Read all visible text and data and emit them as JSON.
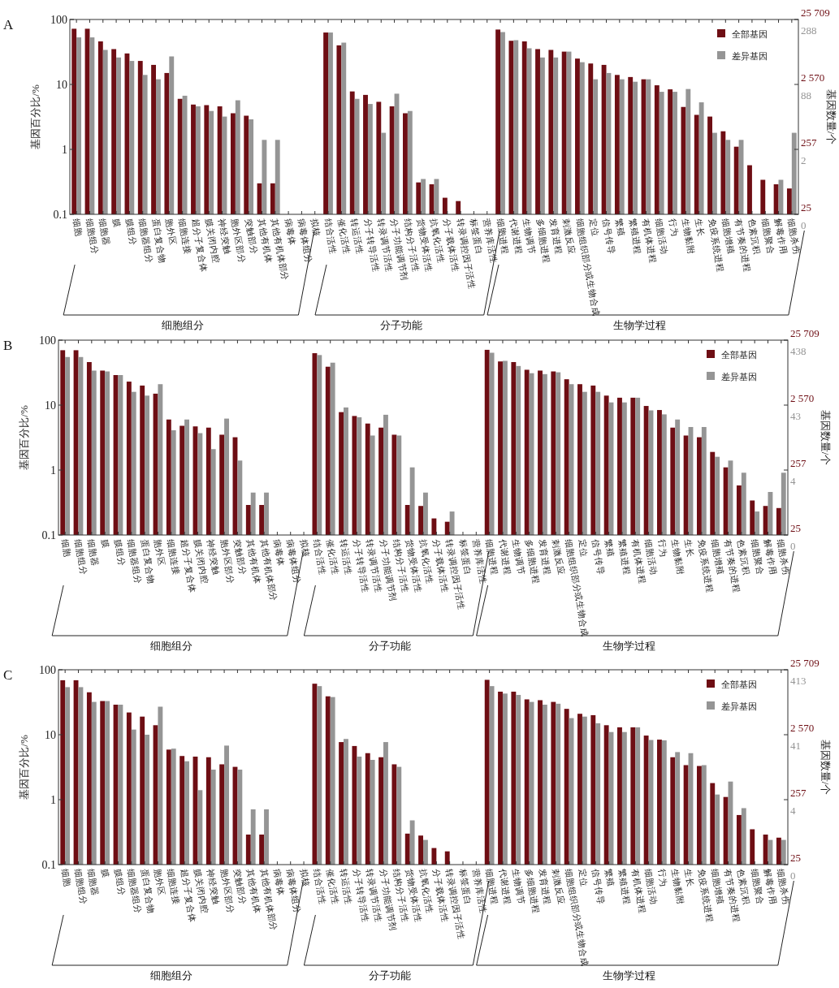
{
  "chart_data": [
    {
      "type": "bar",
      "title": "A",
      "ylabel": "基因百分比/%",
      "y2label": "基因数量/个",
      "log": true,
      "legend": "top right",
      "categories": [
        "细胞",
        "细胞组分",
        "细胞器",
        "膜",
        "膜组分",
        "细胞器组分",
        "蛋白复合物",
        "胞外区",
        "细胞连接",
        "超分子复合体",
        "膜关闭内腔",
        "神经突触",
        "胞外区部分",
        "突触部分",
        "其他有机体",
        "其他有机体部分",
        "病毒体",
        "病毒体组分",
        "拟核",
        "结合活性",
        "催化活性",
        "转运活性",
        "分子转导活性",
        "转录调节活性",
        "分子功能调节剂",
        "结构分子活性",
        "货物受体活性",
        "抗氧化活性",
        "分子载体活性",
        "转录调控因子活性",
        "标签蛋白",
        "营养库活性",
        "细胞进程",
        "代谢进程",
        "生物调节",
        "多细胞进程",
        "发育进程",
        "刺激反应",
        "细胞组织部分或生物合成",
        "定位",
        "信号传导",
        "繁殖",
        "繁殖进程",
        "有机体进程",
        "细胞活动",
        "行为",
        "生物黏附",
        "生长",
        "免疫系统进程",
        "细胞增殖",
        "有节奏的进程",
        "色素沉积",
        "细胞聚合",
        "解毒作用",
        "细胞杀伤"
      ],
      "series": [
        {
          "name": "全部基因",
          "color": "#6e0e14",
          "values": [
            72,
            72,
            46,
            35,
            30,
            23,
            20,
            15,
            6.0,
            4.9,
            4.8,
            4.6,
            3.6,
            3.3,
            0.3,
            0.3,
            null,
            null,
            null,
            63,
            40,
            7.8,
            6.9,
            5.4,
            4.6,
            3.6,
            0.31,
            0.29,
            0.18,
            0.16,
            null,
            null,
            70,
            47,
            46,
            35,
            34,
            32,
            25,
            21,
            20,
            14,
            13,
            12,
            9.7,
            8.4,
            4.5,
            3.4,
            3.2,
            1.9,
            1.1,
            0.57,
            0.34,
            0.29,
            0.25
          ]
        },
        {
          "name": "差异基因",
          "color": "#959595",
          "values": [
            53,
            53,
            34,
            26,
            23,
            14,
            12,
            27,
            6.7,
            4.6,
            3.9,
            3.2,
            5.7,
            2.9,
            1.4,
            1.4,
            null,
            null,
            null,
            63,
            44,
            6.0,
            5.0,
            1.8,
            7.2,
            3.9,
            0.35,
            0.35,
            null,
            null,
            null,
            null,
            64,
            48,
            36,
            26,
            26,
            32,
            22,
            12,
            15,
            12,
            11,
            12,
            7.7,
            7.7,
            8.5,
            5.3,
            1.8,
            1.4,
            1.4,
            null,
            null,
            0.34,
            1.8
          ]
        }
      ],
      "ylim": [
        0.1,
        100
      ],
      "yticks": [
        0.1,
        1,
        10,
        100
      ],
      "annotations": [
        "细胞组分",
        "分子功能",
        "生物学过程",
        "25 709",
        "2 570",
        "257",
        "25",
        "288",
        "88",
        "2",
        "0"
      ]
    },
    {
      "type": "bar",
      "title": "B",
      "ylabel": "基因百分比/%",
      "y2label": "基因数量/个",
      "log": true,
      "legend": "top right",
      "categories": [
        "细胞",
        "细胞组分",
        "细胞器",
        "膜",
        "膜组分",
        "细胞器组分",
        "蛋白复合物",
        "胞外区",
        "细胞连接",
        "超分子复合体",
        "膜关闭内腔",
        "神经突触",
        "胞外区部分",
        "突触部分",
        "其他有机体",
        "其他有机体部分",
        "病毒体",
        "病毒体组分",
        "拟核",
        "结合活性",
        "催化活性",
        "转运活性",
        "分子转导活性",
        "转录调节活性",
        "分子功能调节剂",
        "结构分子活性",
        "货物受体活性",
        "抗氧化活性",
        "分子载体活性",
        "转录调控因子活性",
        "标签蛋白",
        "营养库活性",
        "细胞进程",
        "代谢进程",
        "生物调节",
        "多细胞进程",
        "发育进程",
        "刺激反应",
        "细胞组织部分或生物合成",
        "定位",
        "信号传导",
        "繁殖",
        "繁殖进程",
        "有机体进程",
        "细胞活动",
        "行为",
        "生物黏附",
        "生长",
        "免疫系统进程",
        "细胞增殖",
        "有节奏的进程",
        "色素沉积",
        "细胞聚合",
        "解毒作用",
        "细胞杀伤"
      ],
      "series": [
        {
          "name": "全部基因",
          "color": "#6e0e14",
          "values": [
            70,
            70,
            46,
            34,
            29,
            23,
            20,
            15,
            6.0,
            4.8,
            4.7,
            4.5,
            3.5,
            3.2,
            0.29,
            0.29,
            null,
            null,
            null,
            63,
            39,
            7.8,
            6.8,
            5.2,
            4.5,
            3.5,
            0.29,
            0.28,
            0.18,
            0.16,
            null,
            null,
            71,
            47,
            46,
            35,
            34,
            33,
            25,
            21,
            20,
            14,
            13,
            13,
            9.7,
            8.4,
            4.5,
            3.4,
            3.2,
            1.9,
            1.1,
            0.58,
            0.34,
            0.28,
            0.26
          ]
        },
        {
          "name": "差异基因",
          "color": "#959595",
          "values": [
            55,
            55,
            34,
            33,
            29,
            16,
            14,
            21,
            4.1,
            6.0,
            3.7,
            2.1,
            6.2,
            1.4,
            0.45,
            0.45,
            null,
            null,
            null,
            59,
            45,
            9.2,
            6.5,
            3.4,
            7.1,
            3.4,
            1.1,
            0.45,
            null,
            0.23,
            null,
            null,
            64,
            48,
            40,
            31,
            30,
            32,
            21,
            16,
            16,
            11,
            11,
            13,
            8.3,
            7.2,
            6.0,
            4.6,
            4.6,
            1.6,
            1.4,
            0.91,
            0.23,
            0.46,
            0.91
          ]
        }
      ],
      "ylim": [
        0.1,
        100
      ],
      "yticks": [
        0.1,
        1,
        10,
        100
      ],
      "annotations": [
        "细胞组分",
        "分子功能",
        "生物学过程",
        "25 709",
        "2 570",
        "257",
        "25",
        "438",
        "43",
        "4",
        "0"
      ]
    },
    {
      "type": "bar",
      "title": "C",
      "ylabel": "基因百分比/%",
      "y2label": "基因数量/个",
      "log": true,
      "legend": "top right",
      "categories": [
        "细胞",
        "细胞组分",
        "细胞器",
        "膜",
        "膜组分",
        "细胞器组分",
        "蛋白复合物",
        "胞外区",
        "细胞连接",
        "超分子复合体",
        "膜关闭内腔",
        "神经突触",
        "胞外区部分",
        "突触部分",
        "其他有机体",
        "其他有机体部分",
        "病毒体",
        "病毒体组分",
        "拟核",
        "结合活性",
        "催化活性",
        "转运活性",
        "分子转导活性",
        "转录调节活性",
        "分子功能调节剂",
        "结构分子活性",
        "货物受体活性",
        "抗氧化活性",
        "分子载体活性",
        "转录调控因子活性",
        "标签蛋白",
        "营养库活性",
        "细胞进程",
        "代谢进程",
        "生物调节",
        "多细胞进程",
        "发育进程",
        "刺激反应",
        "细胞组织部分或生物合成",
        "定位",
        "信号传导",
        "繁殖",
        "繁殖进程",
        "有机体进程",
        "细胞活动",
        "行为",
        "生物黏附",
        "生长",
        "免疫系统进程",
        "细胞增殖",
        "有节奏的进程",
        "色素沉积",
        "细胞聚合",
        "解毒作用",
        "细胞杀伤"
      ],
      "series": [
        {
          "name": "全部基因",
          "color": "#6e0e14",
          "values": [
            69,
            69,
            45,
            33,
            29,
            22,
            19,
            14,
            5.9,
            4.7,
            4.6,
            4.5,
            3.5,
            3.2,
            0.29,
            0.29,
            null,
            null,
            null,
            61,
            39,
            7.7,
            6.7,
            5.2,
            4.5,
            3.5,
            0.3,
            0.28,
            0.18,
            0.16,
            null,
            null,
            70,
            46,
            46,
            35,
            34,
            32,
            25,
            21,
            20,
            14,
            13,
            13,
            9.7,
            8.4,
            4.5,
            3.4,
            3.3,
            1.8,
            1.1,
            0.58,
            0.35,
            0.29,
            0.26
          ]
        },
        {
          "name": "差异基因",
          "color": "#959595",
          "values": [
            54,
            54,
            32,
            33,
            29,
            12,
            10,
            27,
            6.1,
            3.9,
            1.4,
            2.9,
            6.8,
            2.9,
            0.71,
            0.71,
            null,
            null,
            null,
            56,
            38,
            8.6,
            4.6,
            4.1,
            7.7,
            3.2,
            0.48,
            0.24,
            null,
            null,
            null,
            null,
            56,
            43,
            41,
            32,
            29,
            30,
            18,
            19,
            15,
            11,
            11,
            13,
            8.3,
            8.2,
            5.4,
            5.2,
            3.4,
            1.2,
            1.9,
            0.74,
            null,
            0.24,
            0.24
          ]
        }
      ],
      "ylim": [
        0.1,
        100
      ],
      "yticks": [
        0.1,
        1,
        10,
        100
      ],
      "annotations": [
        "细胞组分",
        "分子功能",
        "生物学过程",
        "25 709",
        "2 570",
        "257",
        "25",
        "413",
        "41",
        "4",
        "0"
      ]
    }
  ]
}
